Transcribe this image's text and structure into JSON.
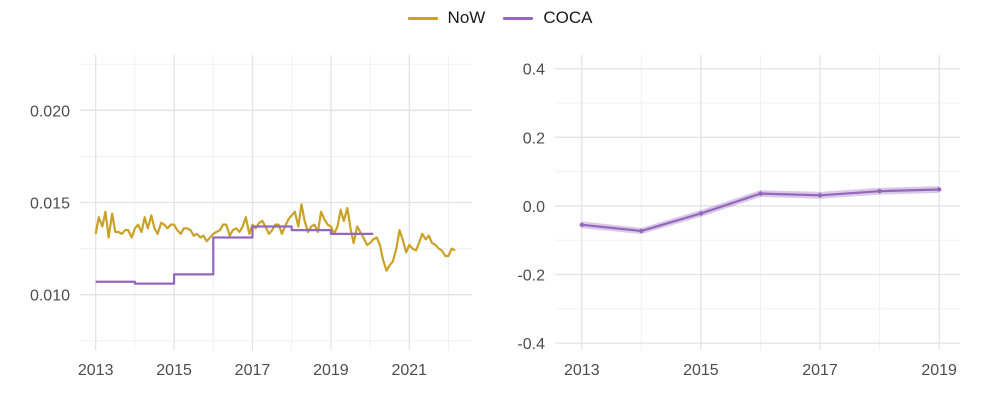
{
  "legend": [
    {
      "label": "NoW",
      "color": "#c9a227"
    },
    {
      "label": "COCA",
      "color": "#9467bd"
    }
  ],
  "chart_data": [
    {
      "type": "line",
      "title": "",
      "xlabel": "",
      "ylabel": "",
      "xlim": [
        2012.6,
        2022.6
      ],
      "ylim": [
        0.007,
        0.023
      ],
      "grid": true,
      "x_ticks": [
        {
          "value": 2013,
          "label": "2013"
        },
        {
          "value": 2015,
          "label": "2015"
        },
        {
          "value": 2017,
          "label": "2017"
        },
        {
          "value": 2019,
          "label": "2019"
        },
        {
          "value": 2021,
          "label": "2021"
        }
      ],
      "y_ticks": [
        {
          "value": 0.01,
          "label": "0.010"
        },
        {
          "value": 0.015,
          "label": "0.015"
        },
        {
          "value": 0.02,
          "label": "0.020"
        }
      ],
      "series": [
        {
          "name": "NoW",
          "color": "#c9a227",
          "x": [
            2013.0,
            2013.08,
            2013.17,
            2013.25,
            2013.33,
            2013.42,
            2013.5,
            2013.58,
            2013.67,
            2013.75,
            2013.83,
            2013.92,
            2014.0,
            2014.08,
            2014.17,
            2014.25,
            2014.33,
            2014.42,
            2014.5,
            2014.58,
            2014.67,
            2014.75,
            2014.83,
            2014.92,
            2015.0,
            2015.08,
            2015.17,
            2015.25,
            2015.33,
            2015.42,
            2015.5,
            2015.58,
            2015.67,
            2015.75,
            2015.83,
            2015.92,
            2016.0,
            2016.08,
            2016.17,
            2016.25,
            2016.33,
            2016.42,
            2016.5,
            2016.58,
            2016.67,
            2016.75,
            2016.83,
            2016.92,
            2017.0,
            2017.08,
            2017.17,
            2017.25,
            2017.33,
            2017.42,
            2017.5,
            2017.58,
            2017.67,
            2017.75,
            2017.83,
            2017.92,
            2018.0,
            2018.08,
            2018.17,
            2018.25,
            2018.33,
            2018.42,
            2018.5,
            2018.58,
            2018.67,
            2018.75,
            2018.83,
            2018.92,
            2019.0,
            2019.08,
            2019.17,
            2019.25,
            2019.33,
            2019.42,
            2019.5,
            2019.58,
            2019.67,
            2019.75,
            2019.83,
            2019.92,
            2020.0,
            2020.08,
            2020.17,
            2020.25,
            2020.33,
            2020.42,
            2020.5,
            2020.58,
            2020.67,
            2020.75,
            2020.83,
            2020.92,
            2021.0,
            2021.08,
            2021.17,
            2021.25,
            2021.33,
            2021.42,
            2021.5,
            2021.58,
            2021.67,
            2021.75,
            2021.83,
            2021.92,
            2022.0,
            2022.08,
            2022.17
          ],
          "values": [
            0.0133,
            0.0142,
            0.0137,
            0.0145,
            0.0131,
            0.0144,
            0.0134,
            0.0134,
            0.0133,
            0.0135,
            0.0135,
            0.0131,
            0.0136,
            0.0138,
            0.0134,
            0.0142,
            0.0136,
            0.0143,
            0.0136,
            0.0133,
            0.0139,
            0.0138,
            0.0136,
            0.0138,
            0.0138,
            0.0135,
            0.0133,
            0.0136,
            0.0136,
            0.0135,
            0.0132,
            0.0133,
            0.0131,
            0.0132,
            0.0129,
            0.0131,
            0.0133,
            0.0134,
            0.0135,
            0.0138,
            0.0138,
            0.0132,
            0.0135,
            0.0136,
            0.0134,
            0.0137,
            0.0142,
            0.0133,
            0.0138,
            0.0136,
            0.0139,
            0.014,
            0.0137,
            0.0133,
            0.0135,
            0.0138,
            0.0138,
            0.0133,
            0.0137,
            0.0141,
            0.0143,
            0.0145,
            0.0137,
            0.0149,
            0.014,
            0.0134,
            0.0137,
            0.0138,
            0.0134,
            0.0145,
            0.0141,
            0.0138,
            0.0137,
            0.0133,
            0.0137,
            0.0146,
            0.014,
            0.0147,
            0.0136,
            0.0128,
            0.0137,
            0.0134,
            0.0131,
            0.0127,
            0.0128,
            0.013,
            0.0131,
            0.0127,
            0.0119,
            0.0113,
            0.0116,
            0.0118,
            0.0125,
            0.0135,
            0.013,
            0.0123,
            0.0127,
            0.0125,
            0.0124,
            0.0128,
            0.0133,
            0.013,
            0.0132,
            0.0128,
            0.0127,
            0.0125,
            0.0124,
            0.0121,
            0.0121,
            0.0125,
            0.0124
          ]
        },
        {
          "name": "COCA",
          "color": "#9467bd",
          "step": true,
          "x": [
            2013.0,
            2014.0,
            2015.0,
            2016.0,
            2017.0,
            2018.0,
            2019.0,
            2020.0
          ],
          "x_end": 2020.08,
          "values": [
            0.0107,
            0.0106,
            0.0111,
            0.0131,
            0.0137,
            0.0135,
            0.0133,
            0.0133
          ]
        }
      ]
    },
    {
      "type": "line",
      "title": "",
      "xlabel": "",
      "ylabel": "",
      "xlim": [
        2012.55,
        2019.35
      ],
      "ylim": [
        -0.42,
        0.44
      ],
      "grid": true,
      "x_ticks": [
        {
          "value": 2013,
          "label": "2013"
        },
        {
          "value": 2015,
          "label": "2015"
        },
        {
          "value": 2017,
          "label": "2017"
        },
        {
          "value": 2019,
          "label": "2019"
        }
      ],
      "y_ticks": [
        {
          "value": -0.4,
          "label": "-0.4"
        },
        {
          "value": -0.2,
          "label": "-0.2"
        },
        {
          "value": 0.0,
          "label": "0.0"
        },
        {
          "value": 0.2,
          "label": "0.2"
        },
        {
          "value": 0.4,
          "label": "0.4"
        }
      ],
      "series": [
        {
          "name": "COCA",
          "color": "#9467bd",
          "x": [
            2013,
            2014,
            2015,
            2016,
            2017,
            2018,
            2019
          ],
          "values": [
            -0.055,
            -0.073,
            -0.022,
            0.036,
            0.031,
            0.043,
            0.048
          ],
          "lower": [
            -0.065,
            -0.082,
            -0.032,
            0.026,
            0.021,
            0.033,
            0.038
          ],
          "upper": [
            -0.045,
            -0.064,
            -0.012,
            0.046,
            0.041,
            0.053,
            0.058
          ]
        }
      ]
    }
  ]
}
